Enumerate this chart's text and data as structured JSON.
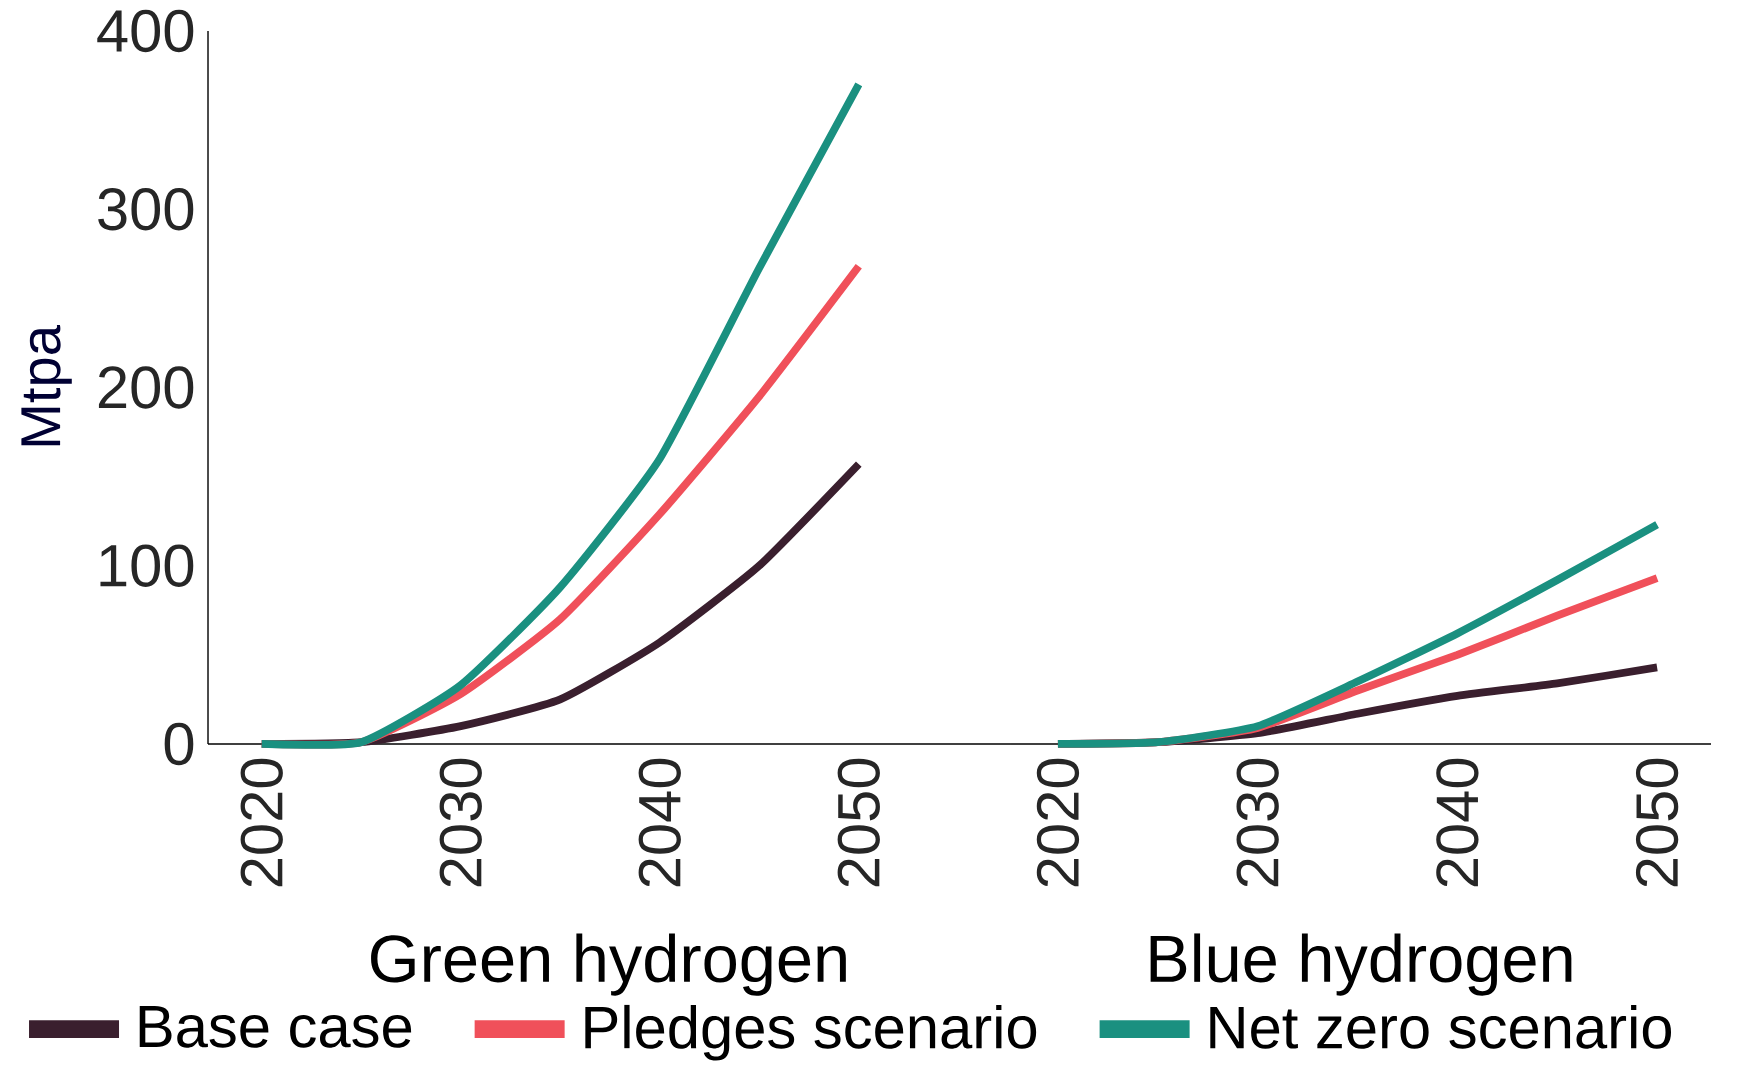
{
  "chart_data": [
    {
      "type": "line",
      "xlabel": "Green hydrogen",
      "ylabel": "Mtpa",
      "x": [
        2020,
        2025,
        2030,
        2035,
        2040,
        2045,
        2050
      ],
      "xlim": [
        2017.3,
        2057.6
      ],
      "xticks": [
        2020,
        2030,
        2040,
        2050
      ],
      "ylim": [
        0,
        400
      ],
      "yticks": [
        0,
        100,
        200,
        300,
        400
      ],
      "legend": "bottom",
      "series": [
        {
          "name": "Base case",
          "color": "#3a1f2e",
          "values": [
            0,
            1,
            10,
            25,
            57,
            100,
            157
          ]
        },
        {
          "name": "Pledges scenario",
          "color": "#f0505a",
          "values": [
            0,
            1,
            28,
            70,
            129,
            195,
            268
          ]
        },
        {
          "name": "Net zero scenario",
          "color": "#1a9080",
          "values": [
            0,
            1,
            33,
            88,
            160,
            267,
            370
          ]
        }
      ]
    },
    {
      "type": "line",
      "xlabel": "Blue hydrogen",
      "x": [
        2020,
        2025,
        2030,
        2035,
        2040,
        2045,
        2050
      ],
      "xlim": [
        2017.6,
        2052.7
      ],
      "xticks": [
        2020,
        2030,
        2040,
        2050
      ],
      "ylim": [
        0,
        400
      ],
      "tick_labels": "x",
      "series": [
        {
          "color": "#3a1f2e",
          "values": [
            0,
            1,
            6,
            17,
            27,
            34,
            43
          ]
        },
        {
          "color": "#f0505a",
          "values": [
            0,
            1,
            9,
            30,
            50,
            72,
            93
          ]
        },
        {
          "color": "#1a9080",
          "values": [
            0,
            1,
            10,
            35,
            62,
            92,
            123
          ]
        }
      ]
    }
  ]
}
